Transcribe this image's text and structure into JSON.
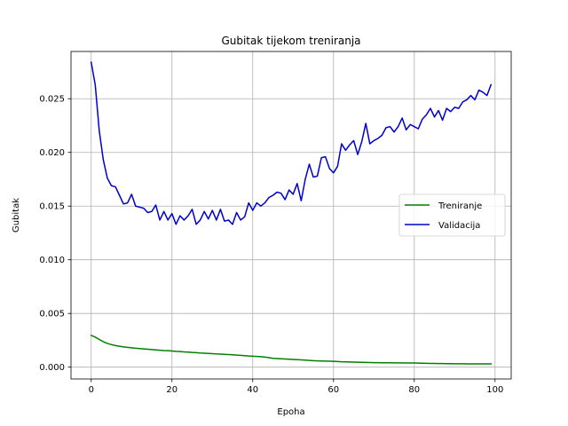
{
  "chart_data": {
    "type": "line",
    "title": "Gubitak tijekom treniranja",
    "xlabel": "Epoha",
    "ylabel": "Gubitak",
    "xlim": [
      -5,
      104
    ],
    "ylim": [
      -0.0011,
      0.0294
    ],
    "xticks": [
      0,
      20,
      40,
      60,
      80,
      100
    ],
    "xtick_labels": [
      "0",
      "20",
      "40",
      "60",
      "80",
      "100"
    ],
    "yticks": [
      0.0,
      0.005,
      0.01,
      0.015,
      0.02,
      0.025
    ],
    "ytick_labels": [
      "0.000",
      "0.005",
      "0.010",
      "0.015",
      "0.020",
      "0.025"
    ],
    "grid": true,
    "legend_position": "center-right",
    "x": [
      0,
      1,
      2,
      3,
      4,
      5,
      6,
      7,
      8,
      9,
      10,
      11,
      12,
      13,
      14,
      15,
      16,
      17,
      18,
      19,
      20,
      21,
      22,
      23,
      24,
      25,
      26,
      27,
      28,
      29,
      30,
      31,
      32,
      33,
      34,
      35,
      36,
      37,
      38,
      39,
      40,
      41,
      42,
      43,
      44,
      45,
      46,
      47,
      48,
      49,
      50,
      51,
      52,
      53,
      54,
      55,
      56,
      57,
      58,
      59,
      60,
      61,
      62,
      63,
      64,
      65,
      66,
      67,
      68,
      69,
      70,
      71,
      72,
      73,
      74,
      75,
      76,
      77,
      78,
      79,
      80,
      81,
      82,
      83,
      84,
      85,
      86,
      87,
      88,
      89,
      90,
      91,
      92,
      93,
      94,
      95,
      96,
      97,
      98,
      99
    ],
    "series": [
      {
        "name": "Treniranje",
        "color": "#008000",
        "values": [
          0.00296,
          0.0028,
          0.00258,
          0.00237,
          0.00221,
          0.0021,
          0.00201,
          0.00195,
          0.00189,
          0.00184,
          0.0018,
          0.00176,
          0.00173,
          0.0017,
          0.00167,
          0.00164,
          0.00161,
          0.00158,
          0.00155,
          0.00153,
          0.0015,
          0.00147,
          0.00145,
          0.00142,
          0.0014,
          0.00137,
          0.00135,
          0.00132,
          0.0013,
          0.00128,
          0.00126,
          0.00123,
          0.00121,
          0.00119,
          0.00117,
          0.00115,
          0.00112,
          0.0011,
          0.00107,
          0.00104,
          0.00102,
          0.001,
          0.00098,
          0.00094,
          0.00088,
          0.00082,
          0.0008,
          0.00078,
          0.00076,
          0.00074,
          0.00072,
          0.0007,
          0.00068,
          0.00066,
          0.00063,
          0.0006,
          0.00058,
          0.00057,
          0.00056,
          0.00055,
          0.00054,
          0.00052,
          0.0005,
          0.00049,
          0.00048,
          0.00047,
          0.00046,
          0.00045,
          0.00044,
          0.00043,
          0.00042,
          0.00042,
          0.00041,
          0.00041,
          0.00041,
          0.0004,
          0.0004,
          0.0004,
          0.00039,
          0.00039,
          0.00039,
          0.00038,
          0.00037,
          0.00036,
          0.00035,
          0.00035,
          0.00034,
          0.00034,
          0.00033,
          0.00033,
          0.00032,
          0.00032,
          0.00032,
          0.00031,
          0.00031,
          0.00031,
          0.0003,
          0.0003,
          0.0003,
          0.0003
        ]
      },
      {
        "name": "Validacija",
        "color": "#0000cd",
        "values": [
          0.0284,
          0.0263,
          0.022,
          0.0193,
          0.0176,
          0.0169,
          0.0168,
          0.016,
          0.0152,
          0.0153,
          0.0161,
          0.015,
          0.0149,
          0.0148,
          0.0144,
          0.0145,
          0.0151,
          0.0137,
          0.0145,
          0.0137,
          0.0143,
          0.0133,
          0.0141,
          0.0137,
          0.0141,
          0.0147,
          0.0133,
          0.0137,
          0.0145,
          0.0138,
          0.0146,
          0.0137,
          0.0147,
          0.0136,
          0.0137,
          0.0133,
          0.0144,
          0.0137,
          0.014,
          0.0153,
          0.0146,
          0.0153,
          0.015,
          0.0153,
          0.0158,
          0.016,
          0.0163,
          0.0162,
          0.0156,
          0.0165,
          0.0161,
          0.0171,
          0.0155,
          0.0175,
          0.0189,
          0.0177,
          0.0178,
          0.0195,
          0.0196,
          0.0185,
          0.0181,
          0.0187,
          0.0208,
          0.0202,
          0.0207,
          0.0211,
          0.0198,
          0.021,
          0.0227,
          0.0208,
          0.0211,
          0.0213,
          0.0216,
          0.0223,
          0.0224,
          0.0219,
          0.0224,
          0.0232,
          0.0221,
          0.0226,
          0.0224,
          0.0222,
          0.0231,
          0.0235,
          0.0241,
          0.0233,
          0.0239,
          0.023,
          0.0241,
          0.0238,
          0.0242,
          0.0241,
          0.0247,
          0.0249,
          0.0253,
          0.0249,
          0.0258,
          0.0256,
          0.0253,
          0.0263
        ]
      }
    ]
  }
}
